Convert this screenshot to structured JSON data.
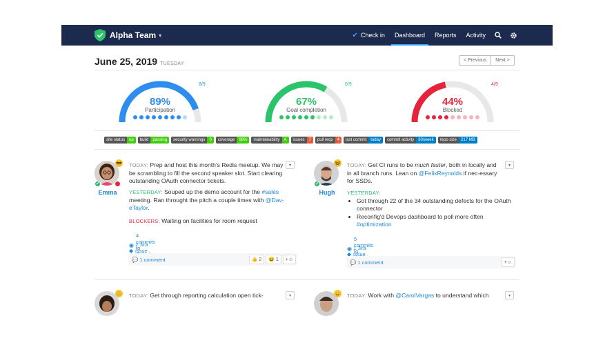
{
  "navbar": {
    "team_name": "Alpha Team",
    "checkin": "Check in",
    "dashboard": "Dashboard",
    "reports": "Reports",
    "activity": "Activity",
    "search_icon": "search-icon",
    "settings_icon": "gear-icon",
    "colors": {
      "bar": "#1c2b4d",
      "accent": "#35a3f2"
    }
  },
  "header": {
    "date": "June 25, 2019",
    "weekday": "TUESDAY",
    "previous": "< Previous",
    "next": "Next >"
  },
  "gauges": [
    {
      "percent": "89%",
      "label": "Participation",
      "fraction": "8/9",
      "value": 0.89,
      "color": "#2e8ef0",
      "dot_color": "#2e8ef0",
      "dots_filled": 8,
      "dots_total": 9
    },
    {
      "percent": "67%",
      "label": "Goal completion",
      "fraction": "6/9",
      "value": 0.67,
      "color": "#2bc46a",
      "dot_color": "#2bc46a",
      "dots_filled": 6,
      "dots_total": 9
    },
    {
      "percent": "44%",
      "label": "Blocked",
      "fraction": "4/9",
      "value": 0.44,
      "color": "#e5243b",
      "dot_color": "#e5243b",
      "dots_filled": 4,
      "dots_total": 9
    }
  ],
  "badges": [
    {
      "key": "site status",
      "value": "up",
      "color": "#4c1"
    },
    {
      "key": "build",
      "value": "passing",
      "color": "#4c1"
    },
    {
      "key": "security warnings",
      "value": "0",
      "color": "#4c1"
    },
    {
      "key": "coverage",
      "value": "98%",
      "color": "#4c1"
    },
    {
      "key": "maintainability",
      "value": "A",
      "color": "#4c1"
    },
    {
      "key": "issues",
      "value": "7",
      "color": "#e05d44"
    },
    {
      "key": "pull reqs",
      "value": "4",
      "color": "#e05d44"
    },
    {
      "key": "last commit",
      "value": "today",
      "color": "#007ec6"
    },
    {
      "key": "commit activity",
      "value": "60/week",
      "color": "#007ec6"
    },
    {
      "key": "repo size",
      "value": "217 MB",
      "color": "#007ec6"
    }
  ],
  "emma": {
    "name": "Emma",
    "today_tag": "TODAY:",
    "today_text": "Prep and host this month's Redis meetup. We may be scrambling to fill the second speaker slot. Start clearing outstanding OAuth connector tickets.",
    "yesterday_tag": "YESTERDAY:",
    "yesterday_1": "Souped up the demo account for the ",
    "yesterday_link1": "#sales",
    "yesterday_2": " meeting. Ran throught the pitch a couple times with ",
    "yesterday_link2": "@Dav-eTaylor",
    "yesterday_3": ".",
    "blockers_tag": "BLOCKERS:",
    "blockers_text": "Waiting on facilities for room request",
    "commits": "4 commits to GitHub",
    "jira": "2 Jira issue updates",
    "comments": "1 comment",
    "react1": "👍 2",
    "react2": "😄 1",
    "react_add": "+☺"
  },
  "hugh": {
    "name": "Hugh",
    "today_tag": "TODAY:",
    "today_1": "Get CI runs to be ",
    "today_em": "much faster",
    "today_2": ", both in locally and in all branch runs. Lean on ",
    "today_link": "@FelixReynolds",
    "today_3": " if nec-essary for SSDs.",
    "yesterday_tag": "YESTERDAY:",
    "bullet1": "Got through 22 of the 34 outstanding defects for the OAuth connector",
    "bullet2": "Reconfig'd Devops dashboard to poll more often ",
    "bullet2_link": "#optimization",
    "commits": "5 commits to GitHub",
    "jira": "1 Jira issue update",
    "comments": "1 comment",
    "react_add": "+☺"
  },
  "card3": {
    "today_tag": "TODAY:",
    "today_text": "Get through reporting calculation open tick-"
  },
  "card4": {
    "today_tag": "TODAY:",
    "today_1": "Work with ",
    "today_link": "@CarolVargas",
    "today_2": " to understand which"
  }
}
